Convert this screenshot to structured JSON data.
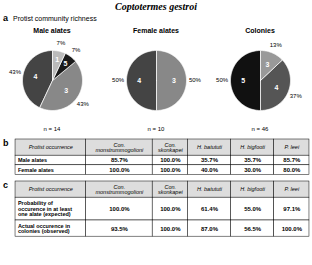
{
  "title": "Coptotermes gestroi",
  "chart_data": [
    {
      "type": "pie",
      "annotations": [
        "a",
        "Protist community richness"
      ],
      "title": "Male alates",
      "subtitle": "n = 14",
      "categories": [
        "4",
        "3",
        "5",
        "1"
      ],
      "values": [
        43,
        43,
        7,
        7
      ],
      "value_labels": [
        "43%",
        "43%",
        "7%",
        "7%"
      ],
      "colors": [
        "#444444",
        "#888888",
        "#1a1a1a",
        "#bbbbbb"
      ],
      "data_labels": true
    },
    {
      "type": "pie",
      "title": "Female alates",
      "subtitle": "n = 10",
      "categories": [
        "4",
        "3"
      ],
      "values": [
        50,
        50
      ],
      "value_labels": [
        "50%",
        "50%"
      ],
      "colors": [
        "#444444",
        "#888888"
      ],
      "data_labels": true
    },
    {
      "type": "pie",
      "title": "Colonies",
      "subtitle": "n = 46",
      "categories": [
        "5",
        "4",
        "3"
      ],
      "values": [
        50,
        37,
        13
      ],
      "value_labels": [
        "50%",
        "37%",
        "13%"
      ],
      "colors": [
        "#111111",
        "#555555",
        "#999999"
      ],
      "data_labels": true
    },
    {
      "type": "table",
      "annotations": [
        "b"
      ],
      "title": "Protist occurrence",
      "columns": [
        "Con.\nmonstrummogolioni",
        "Con.\nskonkapei",
        "H. batututi",
        "H. bigfooti",
        "P. leei"
      ],
      "categories": [
        "Male alates",
        "Female alates"
      ],
      "values": [
        [
          85.7,
          100.0,
          35.7,
          35.7,
          85.7
        ],
        [
          100.0,
          100.0,
          40.0,
          30.0,
          80.0
        ]
      ],
      "value_labels": [
        [
          "85.7%",
          "100.0%",
          "35.7%",
          "35.7%",
          "85.7%"
        ],
        [
          "100.0%",
          "100.0%",
          "40.0%",
          "30.0%",
          "80.0%"
        ]
      ]
    },
    {
      "type": "table",
      "annotations": [
        "c"
      ],
      "title": "Protist occurrence",
      "columns": [
        "Con.\nmonstrummogolioni",
        "Con.\nskonkapei",
        "H. batututi",
        "H. bigfooti",
        "P. leei"
      ],
      "categories": [
        "Probability of\noccurence in at least\none alate (expected)",
        "Actual occurence in\ncolonies (observed)"
      ],
      "values": [
        [
          100.0,
          100.0,
          61.4,
          55.0,
          97.1
        ],
        [
          93.5,
          100.0,
          87.0,
          56.5,
          100.0
        ]
      ],
      "value_labels": [
        [
          "100.0%",
          "100.0%",
          "61.4%",
          "55.0%",
          "97.1%"
        ],
        [
          "93.5%",
          "100.0%",
          "87.0%",
          "56.5%",
          "100.0%"
        ]
      ]
    }
  ]
}
